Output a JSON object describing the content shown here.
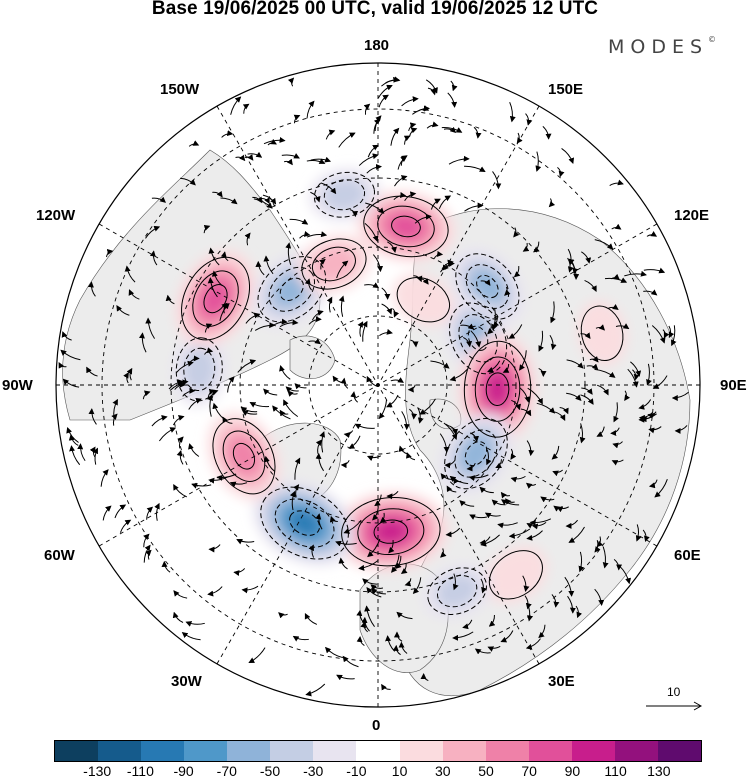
{
  "title": "Base 19/06/2025 00 UTC, valid 19/06/2025 12 UTC",
  "brand": {
    "name": "MODES",
    "mark": "©"
  },
  "longitude_labels": {
    "n180": "180",
    "e150": "150E",
    "e120": "120E",
    "e90": "90E",
    "e60": "60E",
    "e30": "30E",
    "s0": "0",
    "w30": "30W",
    "w60": "60W",
    "w90": "90W",
    "w120": "120W",
    "w150": "150W"
  },
  "reference_vector": {
    "value": "10"
  },
  "colorbar": {
    "colors": [
      "#0d3f5f",
      "#155b8c",
      "#2779b3",
      "#4f98c9",
      "#8fb3d9",
      "#c4cee4",
      "#e8e4f0",
      "#ffffff",
      "#fbdcdf",
      "#f7b1c1",
      "#ef81a8",
      "#e1509a",
      "#c81e8c",
      "#93117d",
      "#5f0b6e"
    ],
    "ticks": [
      "-130",
      "-110",
      "-90",
      "-70",
      "-50",
      "-30",
      "-10",
      "10",
      "30",
      "50",
      "70",
      "90",
      "110",
      "130"
    ]
  },
  "anomalies": [
    {
      "lon": 170,
      "lat": 55,
      "value": 75
    },
    {
      "lon": 132,
      "lat": 58,
      "value": -55
    },
    {
      "lon": 115,
      "lat": 66,
      "value": -55
    },
    {
      "lon": 88,
      "lat": 64,
      "value": 95
    },
    {
      "lon": 55,
      "lat": 64,
      "value": -60
    },
    {
      "lon": 36,
      "lat": 39,
      "value": 25
    },
    {
      "lon": 21,
      "lat": 42,
      "value": -30
    },
    {
      "lon": 5,
      "lat": 58,
      "value": 100
    },
    {
      "lon": -28,
      "lat": 56,
      "value": -90
    },
    {
      "lon": -62,
      "lat": 57,
      "value": 65
    },
    {
      "lon": -95,
      "lat": 51,
      "value": -35
    },
    {
      "lon": -118,
      "lat": 50,
      "value": 80
    },
    {
      "lon": -138,
      "lat": 62,
      "value": -60
    },
    {
      "lon": -160,
      "lat": 62,
      "value": 40
    },
    {
      "lon": -170,
      "lat": 48,
      "value": -30
    },
    {
      "lon": 103,
      "lat": 40,
      "value": 20
    },
    {
      "lon": 152,
      "lat": 69,
      "value": 20
    }
  ]
}
